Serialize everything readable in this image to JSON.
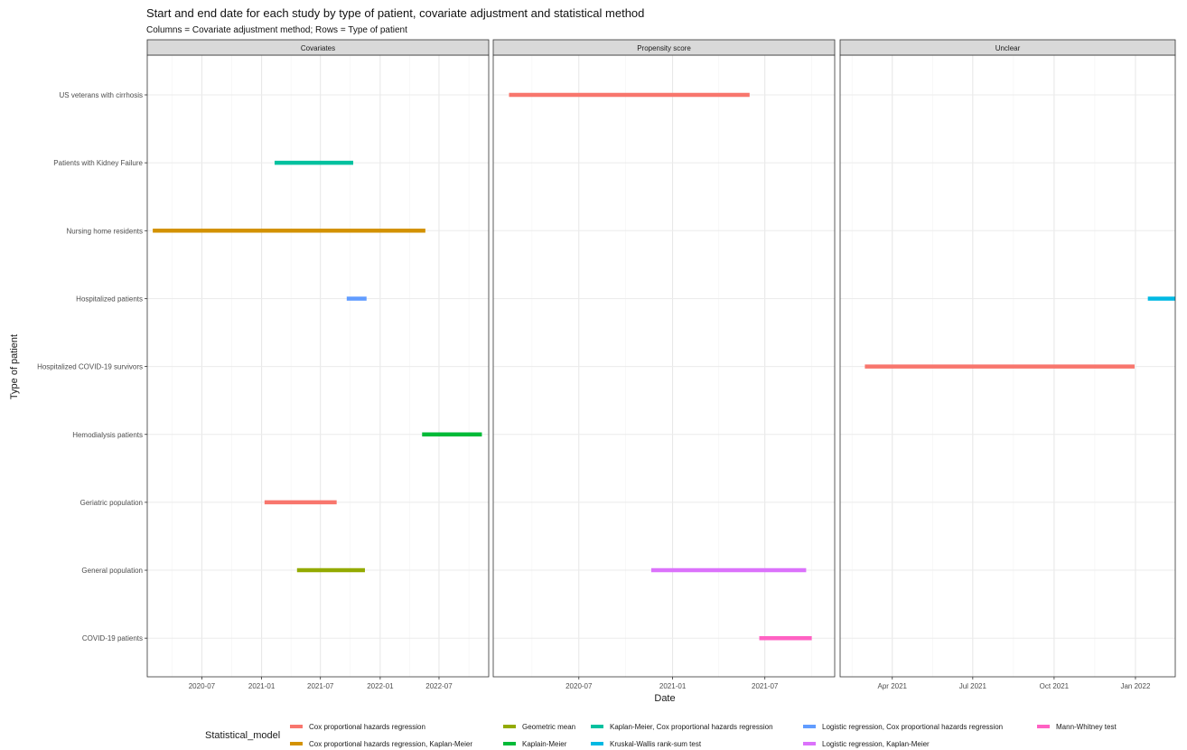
{
  "chart_data": {
    "type": "faceted_range_bar",
    "title": "Start and end date for each study by type of patient, covariate adjustment and statistical method",
    "subtitle": "Columns = Covariate adjustment method; Rows = Type of patient",
    "xlabel": "Date",
    "ylabel": "Type of patient",
    "grid": true,
    "legend_position": "bottom",
    "categories": [
      "US veterans with cirrhosis",
      "Patients with Kidney Failure",
      "Nursing home residents",
      "Hospitalized patients",
      "Hospitalized COVID-19 survivors",
      "Hemodialysis patients",
      "Geriatric population",
      "General population",
      "COVID-19 patients"
    ],
    "legend_title": "Statistical_model",
    "legend": [
      {
        "name": "Cox proportional hazards regression",
        "color": "#F8766D"
      },
      {
        "name": "Cox proportional hazards regression, Kaplan-Meier",
        "color": "#D39200"
      },
      {
        "name": "Geometric mean",
        "color": "#93AA00"
      },
      {
        "name": "Kaplain-Meier",
        "color": "#00BA38"
      },
      {
        "name": "Kaplan-Meier, Cox proportional hazards regression",
        "color": "#00C19F"
      },
      {
        "name": "Kruskal-Wallis rank-sum test",
        "color": "#00B9E3"
      },
      {
        "name": "Logistic regression, Cox proportional hazards regression",
        "color": "#619CFF"
      },
      {
        "name": "Logistic regression, Kaplan-Meier",
        "color": "#DB72FB"
      },
      {
        "name": "Mann-Whitney test",
        "color": "#FF61C3"
      }
    ],
    "facets": [
      {
        "label": "Covariates",
        "xlim": [
          "2020-01-15",
          "2022-12-01"
        ],
        "ticks": [
          {
            "date": "2020-07-01",
            "label": "2020-07"
          },
          {
            "date": "2021-01-01",
            "label": "2021-01"
          },
          {
            "date": "2021-07-01",
            "label": "2021-07"
          },
          {
            "date": "2022-01-01",
            "label": "2022-01"
          },
          {
            "date": "2022-07-01",
            "label": "2022-07"
          }
        ],
        "bars": [
          {
            "category": "Patients with Kidney Failure",
            "start": "2021-02-10",
            "end": "2021-10-10",
            "model": "Kaplan-Meier, Cox proportional hazards regression"
          },
          {
            "category": "Nursing home residents",
            "start": "2020-02-01",
            "end": "2022-05-20",
            "model": "Cox proportional hazards regression, Kaplan-Meier"
          },
          {
            "category": "Hospitalized patients",
            "start": "2021-09-20",
            "end": "2021-11-20",
            "model": "Logistic regression, Cox proportional hazards regression"
          },
          {
            "category": "Hemodialysis patients",
            "start": "2022-05-10",
            "end": "2022-11-10",
            "model": "Kaplain-Meier"
          },
          {
            "category": "Geriatric population",
            "start": "2021-01-10",
            "end": "2021-08-20",
            "model": "Cox proportional hazards regression"
          },
          {
            "category": "General population",
            "start": "2021-04-20",
            "end": "2021-11-15",
            "model": "Geometric mean"
          }
        ]
      },
      {
        "label": "Propensity score",
        "xlim": [
          "2020-01-15",
          "2021-11-15"
        ],
        "ticks": [
          {
            "date": "2020-07-01",
            "label": "2020-07"
          },
          {
            "date": "2021-01-01",
            "label": "2021-01"
          },
          {
            "date": "2021-07-01",
            "label": "2021-07"
          }
        ],
        "bars": [
          {
            "category": "US veterans with cirrhosis",
            "start": "2020-02-15",
            "end": "2021-06-01",
            "model": "Cox proportional hazards regression"
          },
          {
            "category": "General population",
            "start": "2020-11-20",
            "end": "2021-09-20",
            "model": "Logistic regression, Kaplan-Meier"
          },
          {
            "category": "COVID-19 patients",
            "start": "2021-06-20",
            "end": "2021-10-01",
            "model": "Mann-Whitney test"
          }
        ]
      },
      {
        "label": "Unclear",
        "xlim": [
          "2021-02-01",
          "2022-02-15"
        ],
        "ticks": [
          {
            "date": "2021-04-01",
            "label": "Apr 2021"
          },
          {
            "date": "2021-07-01",
            "label": "Jul 2021"
          },
          {
            "date": "2021-10-01",
            "label": "Oct 2021"
          },
          {
            "date": "2022-01-01",
            "label": "Jan 2022"
          }
        ],
        "bars": [
          {
            "category": "Hospitalized patients",
            "start": "2022-01-15",
            "end": "2022-02-15",
            "model": "Kruskal-Wallis rank-sum test"
          },
          {
            "category": "Hospitalized COVID-19 survivors",
            "start": "2021-03-01",
            "end": "2021-12-31",
            "model": "Cox proportional hazards regression"
          }
        ]
      }
    ]
  }
}
